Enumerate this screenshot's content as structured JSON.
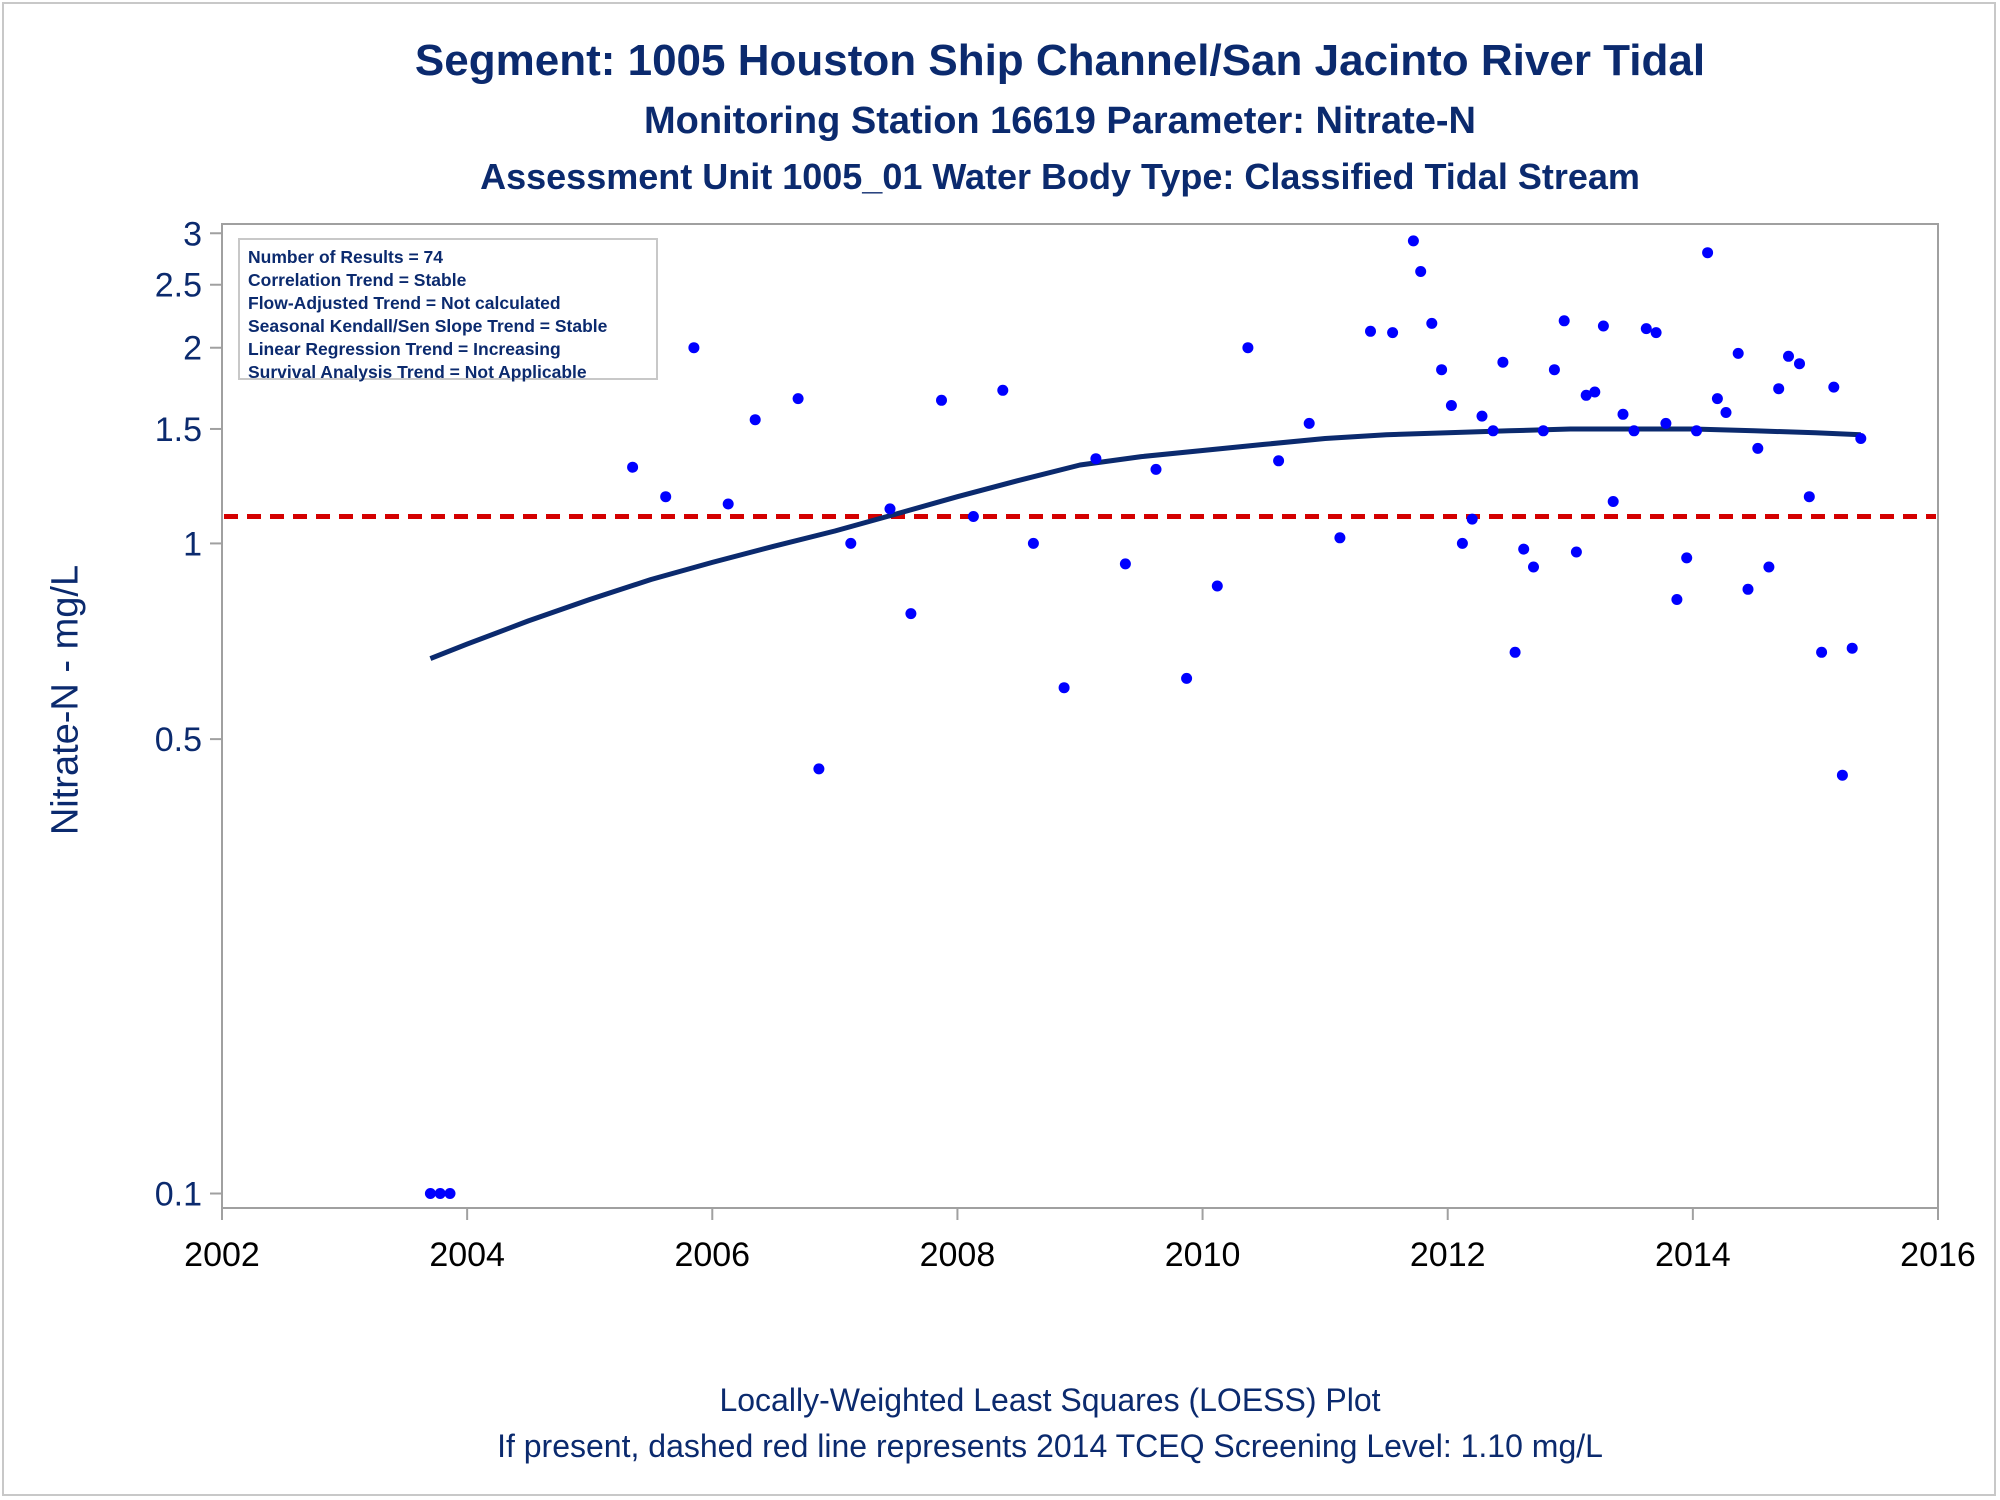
{
  "titles": {
    "line1": "Segment: 1005  Houston Ship Channel/San Jacinto River Tidal",
    "line2": "Monitoring Station 16619 Parameter: Nitrate-N",
    "line3": "Assessment Unit 1005_01   Water Body Type: Classified Tidal Stream"
  },
  "footnotes": {
    "line1": "Locally-Weighted Least Squares (LOESS) Plot",
    "line2": "If present, dashed red line represents 2014 TCEQ Screening Level: 1.10 mg/L"
  },
  "legend": {
    "lines": [
      "Number of Results = 74",
      "Correlation Trend = Stable",
      "Flow-Adjusted Trend = Not calculated",
      "Seasonal Kendall/Sen Slope Trend = Stable",
      "Linear Regression Trend = Increasing",
      "Survival Analysis Trend = Not Applicable"
    ]
  },
  "colors": {
    "text": "#0b2a6e",
    "points": "#0000ff",
    "loess": "#0b2a6e",
    "screening": "#d40000",
    "frame": "#a0a0a0"
  },
  "chart_data": {
    "type": "scatter",
    "ylabel": "Nitrate-N - mg/L",
    "xlabel": "",
    "yscale": "log",
    "xlim": [
      2002,
      2016
    ],
    "ylim": [
      0.095,
      3.1
    ],
    "xticks": [
      2002,
      2004,
      2006,
      2008,
      2010,
      2012,
      2014,
      2016
    ],
    "yticks": [
      0.1,
      0.5,
      1,
      1.5,
      2,
      2.5,
      3
    ],
    "ytick_labels": [
      "0.1",
      "0.5",
      "1",
      "1.5",
      "2",
      "2.5",
      "3"
    ],
    "screening_level": 1.1,
    "points": [
      {
        "x": 2003.7,
        "y": 0.1
      },
      {
        "x": 2003.78,
        "y": 0.1
      },
      {
        "x": 2003.86,
        "y": 0.1
      },
      {
        "x": 2005.35,
        "y": 1.31
      },
      {
        "x": 2005.62,
        "y": 1.18
      },
      {
        "x": 2005.85,
        "y": 2.0
      },
      {
        "x": 2006.13,
        "y": 1.15
      },
      {
        "x": 2006.35,
        "y": 1.55
      },
      {
        "x": 2006.7,
        "y": 1.67
      },
      {
        "x": 2006.87,
        "y": 0.45
      },
      {
        "x": 2007.13,
        "y": 1.0
      },
      {
        "x": 2007.45,
        "y": 1.13
      },
      {
        "x": 2007.62,
        "y": 0.78
      },
      {
        "x": 2007.87,
        "y": 1.66
      },
      {
        "x": 2008.13,
        "y": 1.1
      },
      {
        "x": 2008.37,
        "y": 1.72
      },
      {
        "x": 2008.62,
        "y": 1.0
      },
      {
        "x": 2008.87,
        "y": 0.6
      },
      {
        "x": 2009.13,
        "y": 1.35
      },
      {
        "x": 2009.37,
        "y": 0.93
      },
      {
        "x": 2009.62,
        "y": 1.3
      },
      {
        "x": 2009.87,
        "y": 0.62
      },
      {
        "x": 2010.12,
        "y": 0.86
      },
      {
        "x": 2010.37,
        "y": 2.0
      },
      {
        "x": 2010.62,
        "y": 1.34
      },
      {
        "x": 2010.87,
        "y": 1.53
      },
      {
        "x": 2011.12,
        "y": 1.02
      },
      {
        "x": 2011.37,
        "y": 2.12
      },
      {
        "x": 2011.55,
        "y": 2.11
      },
      {
        "x": 2011.72,
        "y": 2.92
      },
      {
        "x": 2011.78,
        "y": 2.62
      },
      {
        "x": 2011.87,
        "y": 2.18
      },
      {
        "x": 2011.95,
        "y": 1.85
      },
      {
        "x": 2012.03,
        "y": 1.63
      },
      {
        "x": 2012.12,
        "y": 1.0
      },
      {
        "x": 2012.2,
        "y": 1.09
      },
      {
        "x": 2012.28,
        "y": 1.57
      },
      {
        "x": 2012.37,
        "y": 1.49
      },
      {
        "x": 2012.45,
        "y": 1.9
      },
      {
        "x": 2012.55,
        "y": 0.68
      },
      {
        "x": 2012.62,
        "y": 0.98
      },
      {
        "x": 2012.7,
        "y": 0.92
      },
      {
        "x": 2012.78,
        "y": 1.49
      },
      {
        "x": 2012.87,
        "y": 1.85
      },
      {
        "x": 2012.95,
        "y": 2.2
      },
      {
        "x": 2013.05,
        "y": 0.97
      },
      {
        "x": 2013.13,
        "y": 1.69
      },
      {
        "x": 2013.2,
        "y": 1.71
      },
      {
        "x": 2013.27,
        "y": 2.16
      },
      {
        "x": 2013.35,
        "y": 1.16
      },
      {
        "x": 2013.43,
        "y": 1.58
      },
      {
        "x": 2013.52,
        "y": 1.49
      },
      {
        "x": 2013.62,
        "y": 2.14
      },
      {
        "x": 2013.7,
        "y": 2.11
      },
      {
        "x": 2013.78,
        "y": 1.53
      },
      {
        "x": 2013.87,
        "y": 0.82
      },
      {
        "x": 2013.95,
        "y": 0.95
      },
      {
        "x": 2014.03,
        "y": 1.49
      },
      {
        "x": 2014.12,
        "y": 2.8
      },
      {
        "x": 2014.2,
        "y": 1.67
      },
      {
        "x": 2014.27,
        "y": 1.59
      },
      {
        "x": 2014.37,
        "y": 1.96
      },
      {
        "x": 2014.45,
        "y": 0.85
      },
      {
        "x": 2014.53,
        "y": 1.4
      },
      {
        "x": 2014.62,
        "y": 0.92
      },
      {
        "x": 2014.7,
        "y": 1.73
      },
      {
        "x": 2014.78,
        "y": 1.94
      },
      {
        "x": 2014.87,
        "y": 1.89
      },
      {
        "x": 2014.95,
        "y": 1.18
      },
      {
        "x": 2015.05,
        "y": 0.68
      },
      {
        "x": 2015.15,
        "y": 1.74
      },
      {
        "x": 2015.22,
        "y": 0.44
      },
      {
        "x": 2015.3,
        "y": 0.69
      },
      {
        "x": 2015.37,
        "y": 1.45
      }
    ],
    "loess": [
      {
        "x": 2003.7,
        "y": 0.665
      },
      {
        "x": 2004.0,
        "y": 0.7
      },
      {
        "x": 2004.5,
        "y": 0.76
      },
      {
        "x": 2005.0,
        "y": 0.82
      },
      {
        "x": 2005.5,
        "y": 0.88
      },
      {
        "x": 2006.0,
        "y": 0.935
      },
      {
        "x": 2006.5,
        "y": 0.99
      },
      {
        "x": 2007.0,
        "y": 1.045
      },
      {
        "x": 2007.5,
        "y": 1.11
      },
      {
        "x": 2008.0,
        "y": 1.18
      },
      {
        "x": 2008.5,
        "y": 1.25
      },
      {
        "x": 2009.0,
        "y": 1.32
      },
      {
        "x": 2009.5,
        "y": 1.36
      },
      {
        "x": 2010.0,
        "y": 1.39
      },
      {
        "x": 2010.5,
        "y": 1.42
      },
      {
        "x": 2011.0,
        "y": 1.45
      },
      {
        "x": 2011.5,
        "y": 1.47
      },
      {
        "x": 2012.0,
        "y": 1.48
      },
      {
        "x": 2012.5,
        "y": 1.49
      },
      {
        "x": 2013.0,
        "y": 1.5
      },
      {
        "x": 2013.5,
        "y": 1.5
      },
      {
        "x": 2014.0,
        "y": 1.5
      },
      {
        "x": 2014.5,
        "y": 1.49
      },
      {
        "x": 2015.0,
        "y": 1.48
      },
      {
        "x": 2015.37,
        "y": 1.47
      }
    ]
  }
}
